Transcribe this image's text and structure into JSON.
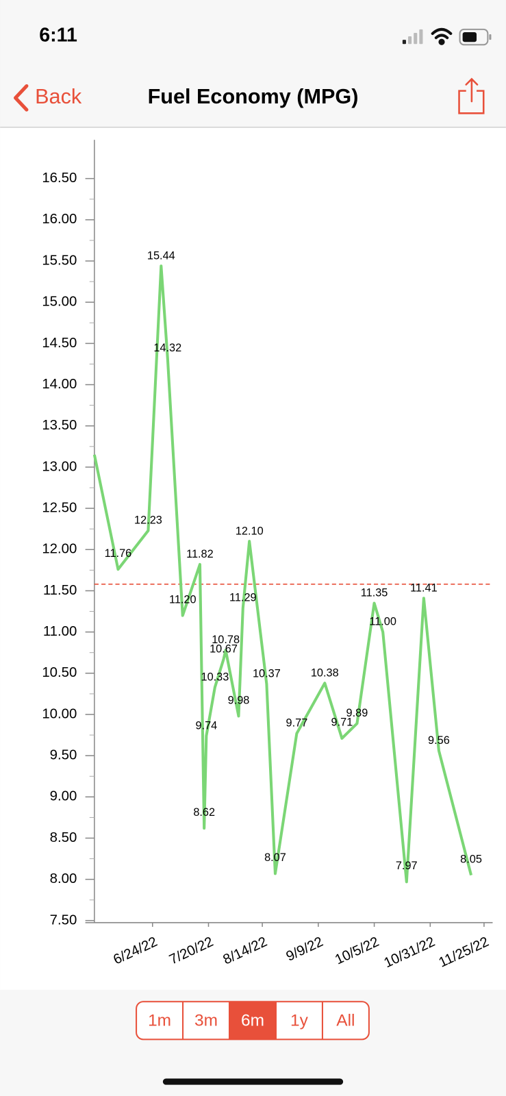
{
  "status_bar": {
    "time": "6:11"
  },
  "nav": {
    "back": "Back",
    "title": "Fuel Economy (MPG)"
  },
  "chart_data": {
    "type": "line",
    "x": [
      "5/28/22",
      "6/8/22",
      "6/22/22",
      "6/28/22",
      "7/1/22",
      "7/8/22",
      "7/16/22",
      "7/18/22",
      "7/19/22",
      "7/23/22",
      "7/27/22",
      "7/28/22",
      "8/3/22",
      "8/5/22",
      "8/8/22",
      "8/16/22",
      "8/20/22",
      "8/30/22",
      "9/12/22",
      "9/20/22",
      "9/27/22",
      "10/5/22",
      "10/9/22",
      "10/20/22",
      "10/28/22",
      "11/4/22",
      "11/19/22"
    ],
    "values": [
      13.15,
      11.76,
      12.23,
      15.44,
      14.32,
      11.2,
      11.82,
      8.62,
      9.74,
      10.33,
      10.67,
      10.78,
      9.98,
      11.29,
      12.1,
      10.37,
      8.07,
      9.77,
      10.38,
      9.71,
      9.89,
      11.35,
      11.0,
      7.97,
      11.41,
      9.56,
      8.05
    ],
    "value_labels": [
      null,
      "11.76",
      "12.23",
      "15.44",
      "14.32",
      "11.20",
      "11.82",
      "8.62",
      "9.74",
      "10.33",
      "10.67",
      "10.78",
      "9.98",
      "11.29",
      "12.10",
      "10.37",
      "8.07",
      "9.77",
      "10.38",
      "9.71",
      "9.89",
      "11.35",
      "11.00",
      "7.97",
      "11.41",
      "9.56",
      "8.05"
    ],
    "color": "#7bd675",
    "reference_line": {
      "value": 11.58,
      "color": "#e8503a"
    },
    "xlim": [
      "5/28/22",
      "11/29/22"
    ],
    "xticks": [
      "6/24/22",
      "7/20/22",
      "8/14/22",
      "9/9/22",
      "10/5/22",
      "10/31/22",
      "11/25/22"
    ],
    "ylim": [
      7.5,
      16.97
    ],
    "yticks": [
      {
        "value": 7.5,
        "label": "7.50"
      },
      {
        "value": 8,
        "label": "8.00"
      },
      {
        "value": 8.5,
        "label": "8.50"
      },
      {
        "value": 9,
        "label": "9.00"
      },
      {
        "value": 9.5,
        "label": "9.50"
      },
      {
        "value": 10,
        "label": "10.00"
      },
      {
        "value": 10.5,
        "label": "10.50"
      },
      {
        "value": 11,
        "label": "11.00"
      },
      {
        "value": 11.5,
        "label": "11.50"
      },
      {
        "value": 12,
        "label": "12.00"
      },
      {
        "value": 12.5,
        "label": "12.50"
      },
      {
        "value": 13,
        "label": "13.00"
      },
      {
        "value": 13.5,
        "label": "13.50"
      },
      {
        "value": 14,
        "label": "14.00"
      },
      {
        "value": 14.5,
        "label": "14.50"
      },
      {
        "value": 15,
        "label": "15.00"
      },
      {
        "value": 15.5,
        "label": "15.50"
      },
      {
        "value": 16,
        "label": "16.00"
      },
      {
        "value": 16.5,
        "label": "16.50"
      }
    ]
  },
  "range_selector": {
    "options": [
      "1m",
      "3m",
      "6m",
      "1y",
      "All"
    ],
    "selected_index": 2
  }
}
